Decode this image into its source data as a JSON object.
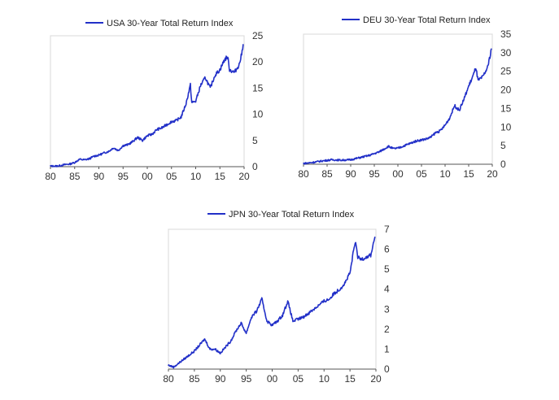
{
  "chart_data": [
    {
      "type": "line",
      "title": "",
      "legend": "USA 30-Year Total Return Index",
      "legend_position": "top",
      "line_color": "#2230c8",
      "xlabel": "",
      "ylabel": "",
      "xlim": [
        1980,
        2020
      ],
      "ylim": [
        0,
        25
      ],
      "x_ticks": [
        "80",
        "85",
        "90",
        "95",
        "00",
        "05",
        "10",
        "15",
        "20"
      ],
      "y_ticks": [
        "0",
        "5",
        "10",
        "15",
        "20",
        "25"
      ],
      "series": [
        {
          "name": "USA 30-Year Total Return Index",
          "points": [
            [
              1980,
              0.1
            ],
            [
              1981,
              0.1
            ],
            [
              1982,
              0.2
            ],
            [
              1983,
              0.4
            ],
            [
              1984,
              0.5
            ],
            [
              1985,
              0.8
            ],
            [
              1986,
              1.4
            ],
            [
              1987,
              1.3
            ],
            [
              1988,
              1.5
            ],
            [
              1989,
              2.0
            ],
            [
              1990,
              2.2
            ],
            [
              1991,
              2.6
            ],
            [
              1992,
              2.9
            ],
            [
              1993,
              3.6
            ],
            [
              1994,
              3.1
            ],
            [
              1995,
              4.0
            ],
            [
              1996,
              4.2
            ],
            [
              1997,
              4.8
            ],
            [
              1998,
              5.6
            ],
            [
              1999,
              5.0
            ],
            [
              2000,
              5.9
            ],
            [
              2001,
              6.2
            ],
            [
              2002,
              7.1
            ],
            [
              2003,
              7.4
            ],
            [
              2004,
              8.0
            ],
            [
              2005,
              8.6
            ],
            [
              2006,
              8.8
            ],
            [
              2007,
              9.5
            ],
            [
              2008,
              12.0
            ],
            [
              2008.9,
              15.6
            ],
            [
              2009.2,
              12.2
            ],
            [
              2010,
              12.5
            ],
            [
              2011,
              15.5
            ],
            [
              2012,
              17.0
            ],
            [
              2013,
              15.0
            ],
            [
              2014,
              17.5
            ],
            [
              2015,
              18.5
            ],
            [
              2016,
              20.5
            ],
            [
              2016.6,
              21.0
            ],
            [
              2017,
              18.5
            ],
            [
              2018,
              18.0
            ],
            [
              2019,
              19.5
            ],
            [
              2019.5,
              21.5
            ],
            [
              2019.8,
              23.3
            ]
          ]
        }
      ],
      "grid": false
    },
    {
      "type": "line",
      "title": "",
      "legend": "DEU 30-Year Total Return Index",
      "legend_position": "top",
      "line_color": "#2230c8",
      "xlabel": "",
      "ylabel": "",
      "xlim": [
        1980,
        2020
      ],
      "ylim": [
        0,
        35
      ],
      "x_ticks": [
        "80",
        "85",
        "90",
        "95",
        "00",
        "05",
        "10",
        "15",
        "20"
      ],
      "y_ticks": [
        "0",
        "5",
        "10",
        "15",
        "20",
        "25",
        "30",
        "35"
      ],
      "series": [
        {
          "name": "DEU 30-Year Total Return Index",
          "points": [
            [
              1980,
              0.2
            ],
            [
              1982,
              0.5
            ],
            [
              1984,
              0.9
            ],
            [
              1986,
              1.2
            ],
            [
              1988,
              1.1
            ],
            [
              1990,
              1.2
            ],
            [
              1992,
              1.8
            ],
            [
              1994,
              2.4
            ],
            [
              1996,
              3.3
            ],
            [
              1998,
              4.8
            ],
            [
              1999,
              4.2
            ],
            [
              2000,
              4.3
            ],
            [
              2002,
              5.3
            ],
            [
              2004,
              6.3
            ],
            [
              2006,
              6.8
            ],
            [
              2007,
              7.3
            ],
            [
              2008,
              8.5
            ],
            [
              2009,
              9.0
            ],
            [
              2010,
              10.5
            ],
            [
              2011,
              12.5
            ],
            [
              2012,
              15.8
            ],
            [
              2013,
              14.5
            ],
            [
              2014,
              17.5
            ],
            [
              2015,
              21.0
            ],
            [
              2016,
              24.0
            ],
            [
              2016.5,
              26.0
            ],
            [
              2017,
              22.5
            ],
            [
              2018,
              23.5
            ],
            [
              2019,
              26.0
            ],
            [
              2019.5,
              29.0
            ],
            [
              2019.8,
              31.0
            ]
          ]
        }
      ],
      "grid": false
    },
    {
      "type": "line",
      "title": "",
      "legend": "JPN 30-Year Total Return Index",
      "legend_position": "top",
      "line_color": "#2230c8",
      "xlabel": "",
      "ylabel": "",
      "xlim": [
        1980,
        2020
      ],
      "ylim": [
        0,
        7
      ],
      "x_ticks": [
        "80",
        "85",
        "90",
        "95",
        "00",
        "05",
        "10",
        "15",
        "20"
      ],
      "y_ticks": [
        "0",
        "1",
        "2",
        "3",
        "4",
        "5",
        "6",
        "7"
      ],
      "series": [
        {
          "name": "JPN 30-Year Total Return Index",
          "points": [
            [
              1980,
              0.2
            ],
            [
              1981,
              0.1
            ],
            [
              1982,
              0.3
            ],
            [
              1983,
              0.5
            ],
            [
              1984,
              0.7
            ],
            [
              1985,
              0.9
            ],
            [
              1986,
              1.2
            ],
            [
              1987,
              1.5
            ],
            [
              1988,
              1.0
            ],
            [
              1989,
              1.0
            ],
            [
              1990,
              0.8
            ],
            [
              1991,
              1.1
            ],
            [
              1992,
              1.4
            ],
            [
              1993,
              1.9
            ],
            [
              1994,
              2.3
            ],
            [
              1995,
              1.8
            ],
            [
              1996,
              2.6
            ],
            [
              1997,
              2.9
            ],
            [
              1998,
              3.5
            ],
            [
              1999,
              2.4
            ],
            [
              2000,
              2.2
            ],
            [
              2001,
              2.4
            ],
            [
              2002,
              2.7
            ],
            [
              2003,
              3.4
            ],
            [
              2004,
              2.4
            ],
            [
              2005,
              2.5
            ],
            [
              2006,
              2.6
            ],
            [
              2007,
              2.8
            ],
            [
              2008,
              3.0
            ],
            [
              2009,
              3.2
            ],
            [
              2010,
              3.4
            ],
            [
              2011,
              3.5
            ],
            [
              2012,
              3.8
            ],
            [
              2013,
              4.0
            ],
            [
              2014,
              4.3
            ],
            [
              2015,
              4.8
            ],
            [
              2016,
              6.4
            ],
            [
              2016.5,
              5.6
            ],
            [
              2017,
              5.5
            ],
            [
              2018,
              5.6
            ],
            [
              2019,
              5.7
            ],
            [
              2019.8,
              6.6
            ]
          ]
        }
      ],
      "grid": false
    }
  ]
}
